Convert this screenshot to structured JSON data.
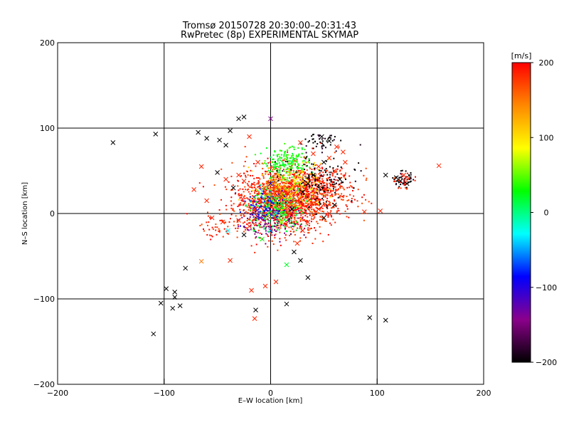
{
  "chart_data": {
    "type": "scatter",
    "title": "Tromsø 20150728 20:30:00–20:31:43",
    "subtitle": "RwPretec (8p) EXPERIMENTAL SKYMAP",
    "xlabel": "E–W location [km]",
    "ylabel": "N–S location [km]",
    "xlim": [
      -200,
      200
    ],
    "ylim": [
      -200,
      200
    ],
    "x_ticks": [
      "−200",
      "−100",
      "0",
      "100",
      "200"
    ],
    "y_ticks": [
      "−200",
      "−100",
      "0",
      "100",
      "200"
    ],
    "grid": true,
    "colorbar": {
      "label": "[m/s]",
      "range": [
        -200,
        200
      ],
      "ticks": [
        "200",
        "100",
        "0",
        "−100",
        "−200"
      ],
      "colors": [
        "#000000",
        "#8b008b",
        "#0000ff",
        "#00ffff",
        "#00ff00",
        "#ffff00",
        "#ff8800",
        "#ff0000"
      ]
    },
    "cross_points": [
      {
        "x": -148,
        "y": 83,
        "v": -200
      },
      {
        "x": -108,
        "y": 93,
        "v": -200
      },
      {
        "x": -68,
        "y": 95,
        "v": -200
      },
      {
        "x": -60,
        "y": 88,
        "v": -200
      },
      {
        "x": -48,
        "y": 86,
        "v": -200
      },
      {
        "x": -42,
        "y": 80,
        "v": -200
      },
      {
        "x": -38,
        "y": 97,
        "v": -200
      },
      {
        "x": -30,
        "y": 111,
        "v": -200
      },
      {
        "x": -25,
        "y": 113,
        "v": -200
      },
      {
        "x": 0,
        "y": 111,
        "v": -140
      },
      {
        "x": -20,
        "y": 90,
        "v": 185
      },
      {
        "x": -65,
        "y": 55,
        "v": 185
      },
      {
        "x": -72,
        "y": 28,
        "v": 185
      },
      {
        "x": -60,
        "y": 15,
        "v": 185
      },
      {
        "x": -42,
        "y": 40,
        "v": 185
      },
      {
        "x": -35,
        "y": 30,
        "v": -200
      },
      {
        "x": -30,
        "y": 45,
        "v": 185
      },
      {
        "x": -25,
        "y": 38,
        "v": 185
      },
      {
        "x": -55,
        "y": -5,
        "v": 185
      },
      {
        "x": -45,
        "y": -10,
        "v": 185
      },
      {
        "x": -40,
        "y": -20,
        "v": -30
      },
      {
        "x": -30,
        "y": -8,
        "v": 185
      },
      {
        "x": -25,
        "y": -25,
        "v": -200
      },
      {
        "x": -20,
        "y": -15,
        "v": 185
      },
      {
        "x": -15,
        "y": 5,
        "v": 185
      },
      {
        "x": -10,
        "y": 15,
        "v": 185
      },
      {
        "x": -5,
        "y": 25,
        "v": 185
      },
      {
        "x": 5,
        "y": 30,
        "v": 150
      },
      {
        "x": 10,
        "y": 20,
        "v": 185
      },
      {
        "x": 15,
        "y": 10,
        "v": 185
      },
      {
        "x": 20,
        "y": 5,
        "v": -200
      },
      {
        "x": 25,
        "y": 15,
        "v": 185
      },
      {
        "x": 30,
        "y": 25,
        "v": -200
      },
      {
        "x": 35,
        "y": 35,
        "v": -200
      },
      {
        "x": 40,
        "y": 45,
        "v": -200
      },
      {
        "x": 45,
        "y": 55,
        "v": 185
      },
      {
        "x": 50,
        "y": 60,
        "v": -200
      },
      {
        "x": 55,
        "y": 65,
        "v": 185
      },
      {
        "x": 60,
        "y": 50,
        "v": 185
      },
      {
        "x": 65,
        "y": 40,
        "v": -200
      },
      {
        "x": 70,
        "y": 60,
        "v": 185
      },
      {
        "x": 48,
        "y": 90,
        "v": -200
      },
      {
        "x": 55,
        "y": 85,
        "v": -200
      },
      {
        "x": 62,
        "y": 78,
        "v": 185
      },
      {
        "x": 68,
        "y": 72,
        "v": 185
      },
      {
        "x": 60,
        "y": 10,
        "v": -200
      },
      {
        "x": 55,
        "y": 0,
        "v": 185
      },
      {
        "x": 50,
        "y": -5,
        "v": -200
      },
      {
        "x": 45,
        "y": 5,
        "v": 185
      },
      {
        "x": 40,
        "y": -2,
        "v": 185
      },
      {
        "x": 35,
        "y": -10,
        "v": 185
      },
      {
        "x": 30,
        "y": -20,
        "v": 185
      },
      {
        "x": 25,
        "y": -35,
        "v": 185
      },
      {
        "x": 22,
        "y": -45,
        "v": -200
      },
      {
        "x": 28,
        "y": -55,
        "v": -200
      },
      {
        "x": 35,
        "y": -75,
        "v": -200
      },
      {
        "x": 15,
        "y": -60,
        "v": 20
      },
      {
        "x": 5,
        "y": -80,
        "v": 185
      },
      {
        "x": -5,
        "y": -85,
        "v": 185
      },
      {
        "x": -18,
        "y": -90,
        "v": 185
      },
      {
        "x": -38,
        "y": -55,
        "v": 185
      },
      {
        "x": -65,
        "y": -56,
        "v": 150
      },
      {
        "x": -98,
        "y": -88,
        "v": -200
      },
      {
        "x": -90,
        "y": -92,
        "v": -200
      },
      {
        "x": -90,
        "y": -98,
        "v": -200
      },
      {
        "x": -85,
        "y": -108,
        "v": -200
      },
      {
        "x": -92,
        "y": -111,
        "v": -200
      },
      {
        "x": -103,
        "y": -105,
        "v": -200
      },
      {
        "x": -110,
        "y": -141,
        "v": -200
      },
      {
        "x": -80,
        "y": -64,
        "v": -200
      },
      {
        "x": -14,
        "y": -113,
        "v": -200
      },
      {
        "x": -15,
        "y": -123,
        "v": 185
      },
      {
        "x": 15,
        "y": -106,
        "v": -200
      },
      {
        "x": 93,
        "y": -122,
        "v": -200
      },
      {
        "x": 108,
        "y": -125,
        "v": -200
      },
      {
        "x": 88,
        "y": 2,
        "v": 185
      },
      {
        "x": 103,
        "y": 3,
        "v": 185
      },
      {
        "x": 108,
        "y": 45,
        "v": -200
      },
      {
        "x": 118,
        "y": 42,
        "v": -200
      },
      {
        "x": 122,
        "y": 38,
        "v": -200
      },
      {
        "x": 125,
        "y": 45,
        "v": 185
      },
      {
        "x": 128,
        "y": 35,
        "v": -200
      },
      {
        "x": 158,
        "y": 56,
        "v": 185
      },
      {
        "x": 10,
        "y": -10,
        "v": 70
      },
      {
        "x": 0,
        "y": -20,
        "v": -60
      },
      {
        "x": -8,
        "y": -30,
        "v": 30
      },
      {
        "x": 5,
        "y": 0,
        "v": -30
      },
      {
        "x": 12,
        "y": 40,
        "v": 60
      },
      {
        "x": -12,
        "y": 60,
        "v": 185
      },
      {
        "x": 20,
        "y": 60,
        "v": 10
      },
      {
        "x": 40,
        "y": 70,
        "v": 185
      },
      {
        "x": 28,
        "y": 83,
        "v": 185
      },
      {
        "x": -50,
        "y": 48,
        "v": -200
      },
      {
        "x": -10,
        "y": -5,
        "v": -120
      },
      {
        "x": 0,
        "y": 35,
        "v": -100
      }
    ],
    "dot_clusters": [
      {
        "cx": 10,
        "cy": 15,
        "sx": 22,
        "sy": 18,
        "n": 1400,
        "v": 185
      },
      {
        "cx": 40,
        "cy": 25,
        "sx": 20,
        "sy": 16,
        "n": 500,
        "v": 185
      },
      {
        "cx": 15,
        "cy": 60,
        "sx": 10,
        "sy": 10,
        "n": 200,
        "v": 30
      },
      {
        "cx": 5,
        "cy": 5,
        "sx": 12,
        "sy": 14,
        "n": 260,
        "v": 20
      },
      {
        "cx": 0,
        "cy": -8,
        "sx": 14,
        "sy": 10,
        "n": 120,
        "v": -150
      },
      {
        "cx": 45,
        "cy": 40,
        "sx": 16,
        "sy": 14,
        "n": 140,
        "v": -200
      },
      {
        "cx": 50,
        "cy": 85,
        "sx": 8,
        "sy": 5,
        "n": 40,
        "v": -200
      },
      {
        "cx": 20,
        "cy": 30,
        "sx": 18,
        "sy": 15,
        "n": 150,
        "v": 100
      },
      {
        "cx": 125,
        "cy": 40,
        "sx": 5,
        "sy": 4,
        "n": 45,
        "v": -200
      },
      {
        "cx": 125,
        "cy": 38,
        "sx": 5,
        "sy": 4,
        "n": 30,
        "v": 185
      },
      {
        "cx": -5,
        "cy": 10,
        "sx": 10,
        "sy": 12,
        "n": 90,
        "v": -80
      },
      {
        "cx": -45,
        "cy": -15,
        "sx": 10,
        "sy": 8,
        "n": 50,
        "v": 185
      },
      {
        "cx": 10,
        "cy": 30,
        "sx": 8,
        "sy": 8,
        "n": 60,
        "v": 140
      }
    ]
  }
}
